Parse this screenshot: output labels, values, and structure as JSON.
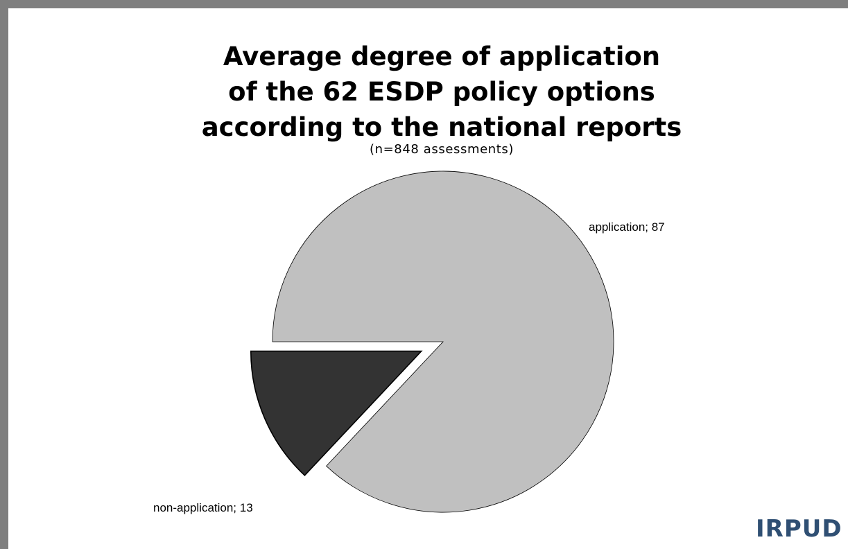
{
  "chart_data": {
    "type": "pie",
    "title_lines": [
      "Average degree of application",
      "of the 62 ESDP policy options",
      "according to the national reports"
    ],
    "subtitle": "(n=848 assessments)",
    "slices": [
      {
        "name": "application",
        "value": 87,
        "label": "application; 87",
        "color": "#c0c0c0",
        "exploded": false
      },
      {
        "name": "non-application",
        "value": 13,
        "label": "non-application; 13",
        "color": "#333333",
        "exploded": true
      }
    ]
  },
  "logo": {
    "text": "IRPUD",
    "color": "#2f4f73"
  }
}
